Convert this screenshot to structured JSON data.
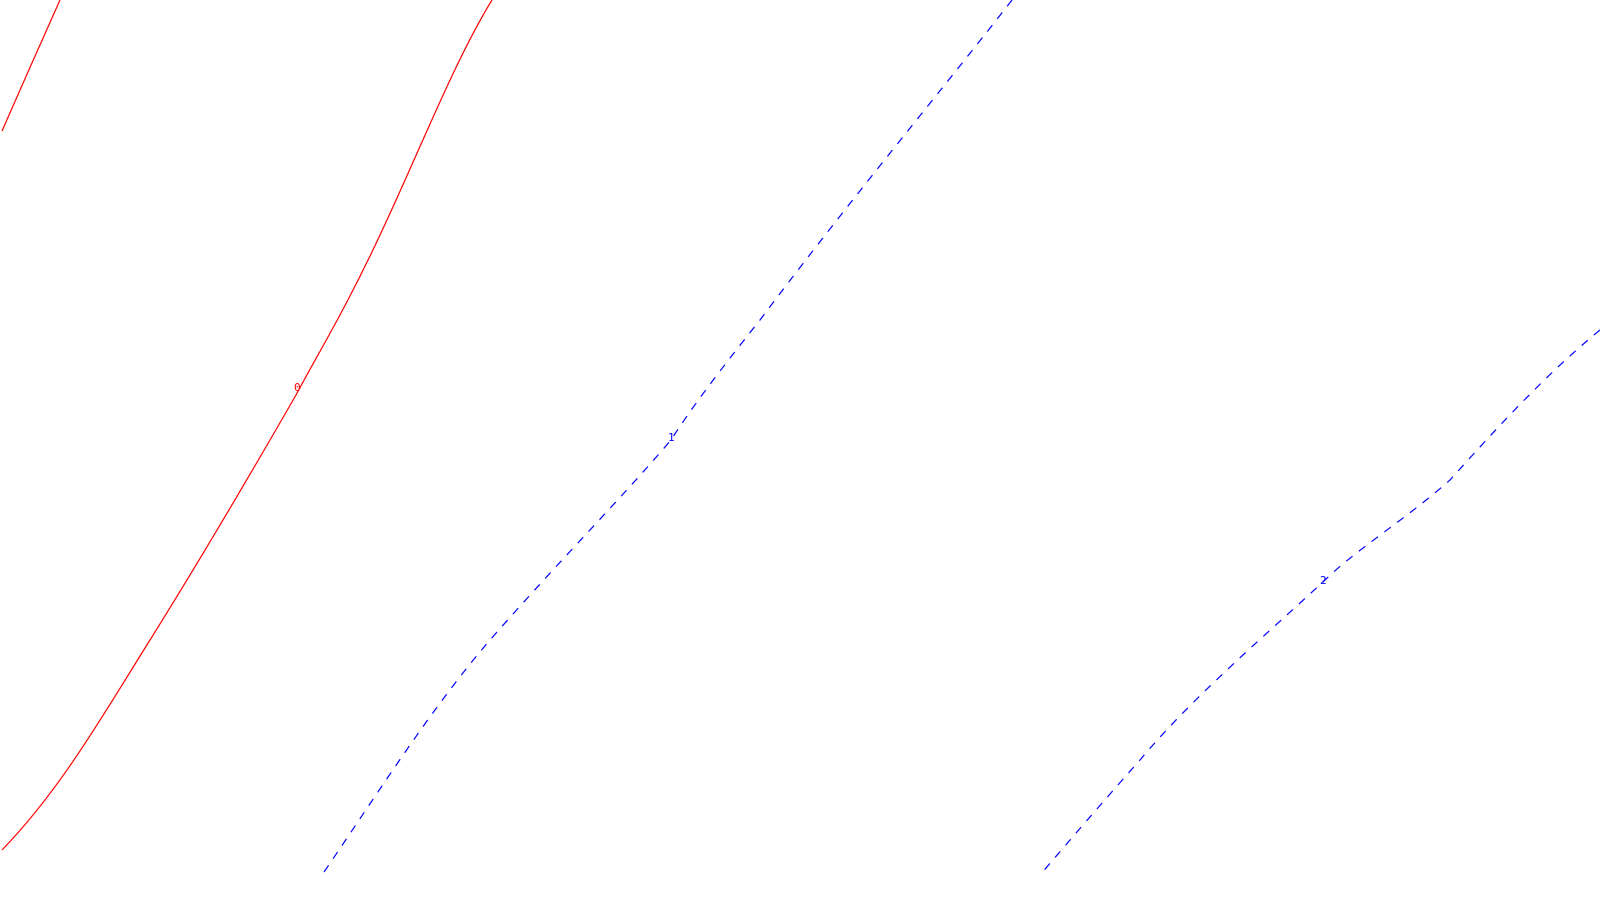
{
  "contours": [
    {
      "id": "contour-0-upper",
      "value": "",
      "color": "#ff0000",
      "style": "solid"
    },
    {
      "id": "contour-0",
      "value": "0",
      "color": "#ff0000",
      "style": "solid"
    },
    {
      "id": "contour-1",
      "value": "1",
      "color": "#0000ff",
      "style": "dashed"
    },
    {
      "id": "contour-2",
      "value": "2",
      "color": "#0000ff",
      "style": "dashed"
    }
  ]
}
